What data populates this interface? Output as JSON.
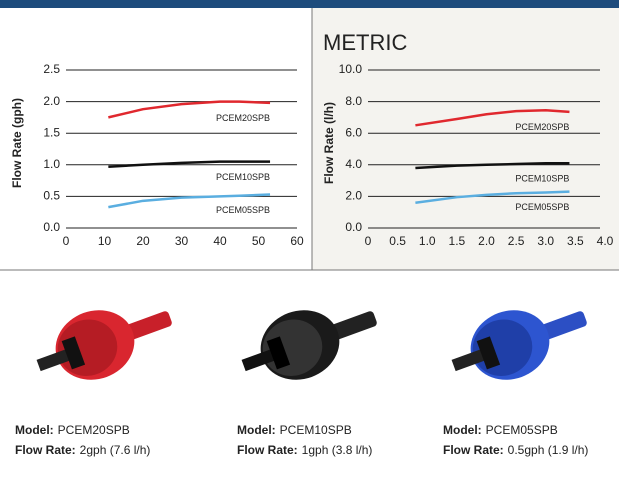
{
  "chart_data": [
    {
      "type": "line",
      "ylabel": "Flow Rate (gph)",
      "x": [
        11,
        20,
        30,
        40,
        45,
        53
      ],
      "xlim": [
        0,
        60
      ],
      "xticks": [
        0,
        10,
        20,
        30,
        40,
        50,
        60
      ],
      "ylim": [
        0,
        2.5
      ],
      "yticks": [
        {
          "value": 0,
          "label": "0.0"
        },
        0.5,
        {
          "value": 1,
          "label": "1.0"
        },
        1.5,
        {
          "value": 2,
          "label": "2.0"
        },
        2.5
      ],
      "grid": true,
      "series": [
        {
          "name": "PCEM20SPB",
          "color": "#e0282e",
          "values": [
            1.75,
            1.88,
            1.96,
            2.0,
            2.0,
            1.98
          ]
        },
        {
          "name": "PCEM10SPB",
          "color": "#111111",
          "values": [
            0.97,
            1.0,
            1.03,
            1.05,
            1.05,
            1.05
          ]
        },
        {
          "name": "PCEM05SPB",
          "color": "#5aaee0",
          "values": [
            0.33,
            0.43,
            0.48,
            0.5,
            0.51,
            0.53
          ]
        }
      ]
    },
    {
      "type": "line",
      "title": "METRIC",
      "ylabel": "Flow Rate (l/h)",
      "x": [
        0.8,
        1.5,
        2.0,
        2.5,
        3.0,
        3.4
      ],
      "xlim": [
        0,
        4
      ],
      "xticks": [
        0,
        0.5,
        {
          "value": 1,
          "label": "1.0"
        },
        1.5,
        {
          "value": 2,
          "label": "2.0"
        },
        2.5,
        {
          "value": 3,
          "label": "3.0"
        },
        3.5,
        {
          "value": 4,
          "label": "4.0"
        }
      ],
      "ylim": [
        0,
        10
      ],
      "yticks": [
        {
          "value": 0,
          "label": "0.0"
        },
        {
          "value": 2,
          "label": "2.0"
        },
        {
          "value": 4,
          "label": "4.0"
        },
        {
          "value": 6,
          "label": "6.0"
        },
        {
          "value": 8,
          "label": "8.0"
        },
        {
          "value": 10,
          "label": "10.0"
        }
      ],
      "grid": true,
      "series": [
        {
          "name": "PCEM20SPB",
          "color": "#e0282e",
          "values": [
            6.5,
            6.9,
            7.2,
            7.4,
            7.45,
            7.35
          ]
        },
        {
          "name": "PCEM10SPB",
          "color": "#111111",
          "values": [
            3.8,
            3.95,
            4.0,
            4.05,
            4.1,
            4.1
          ]
        },
        {
          "name": "PCEM05SPB",
          "color": "#5aaee0",
          "values": [
            1.6,
            1.95,
            2.1,
            2.2,
            2.25,
            2.3
          ]
        }
      ]
    }
  ],
  "products": [
    {
      "model_label": "Model:",
      "model": "PCEM20SPB",
      "flow_label": "Flow Rate:",
      "flow": "2gph (7.6 l/h)"
    },
    {
      "model_label": "Model:",
      "model": "PCEM10SPB",
      "flow_label": "Flow Rate:",
      "flow": "1gph (3.8 l/h)"
    },
    {
      "model_label": "Model:",
      "model": "PCEM05SPB",
      "flow_label": "Flow Rate:",
      "flow": "0.5gph (1.9 l/h)"
    }
  ]
}
